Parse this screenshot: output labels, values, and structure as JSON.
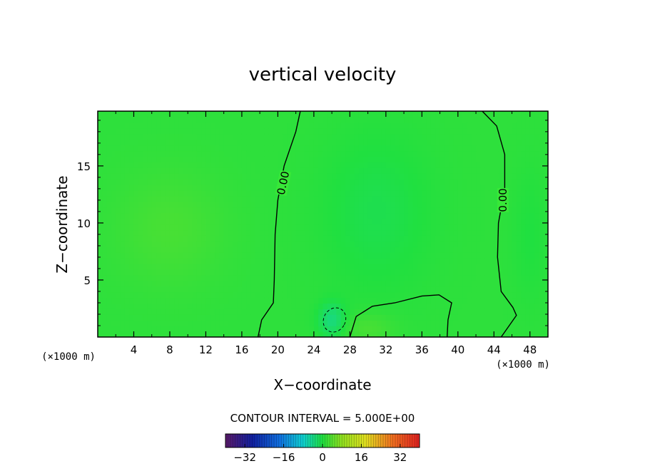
{
  "chart_data": {
    "type": "heatmap",
    "title": "vertical velocity",
    "xlabel": "X−coordinate",
    "ylabel": "Z−coordinate",
    "x_unit": "(×1000 m)",
    "y_unit": "(×1000 m)",
    "xlim": [
      0,
      50
    ],
    "ylim": [
      0,
      19.8
    ],
    "x_ticks": [
      4,
      8,
      12,
      16,
      20,
      24,
      28,
      32,
      36,
      40,
      44,
      48
    ],
    "x_tick_labels": [
      "4",
      "8",
      "12",
      "16",
      "20",
      "24",
      "28",
      "32",
      "36",
      "40",
      "44",
      "48"
    ],
    "y_ticks": [
      5,
      10,
      15
    ],
    "y_tick_labels": [
      "5",
      "10",
      "15"
    ],
    "contour_interval_text": "CONTOUR INTERVAL = 5.000E+00",
    "contour_label": "0.00",
    "colorbar": {
      "min": -40,
      "max": 40,
      "ticks": [
        -32,
        -16,
        0,
        16,
        32
      ],
      "tick_labels": [
        "−32",
        "−16",
        "0",
        "16",
        "32"
      ]
    },
    "zero_contours": [
      [
        [
          17.8,
          0
        ],
        [
          18.2,
          1.5
        ],
        [
          19.5,
          3
        ],
        [
          19.6,
          5
        ],
        [
          19.7,
          9
        ],
        [
          20.0,
          12
        ],
        [
          20.7,
          15
        ],
        [
          22.0,
          18
        ],
        [
          22.5,
          19.8
        ]
      ],
      [
        [
          28.0,
          0
        ],
        [
          28.7,
          1.8
        ],
        [
          30.5,
          2.7
        ],
        [
          33.0,
          3.0
        ],
        [
          36.0,
          3.6
        ],
        [
          37.9,
          3.7
        ],
        [
          39.3,
          3.0
        ],
        [
          38.9,
          1.5
        ],
        [
          38.8,
          0
        ]
      ],
      [
        [
          42.7,
          19.8
        ],
        [
          44.3,
          18.5
        ],
        [
          45.2,
          16
        ],
        [
          45.2,
          13
        ],
        [
          44.5,
          10
        ],
        [
          44.4,
          7
        ],
        [
          44.8,
          4
        ],
        [
          46.1,
          2.6
        ],
        [
          46.5,
          1.9
        ],
        [
          44.8,
          0
        ]
      ]
    ],
    "negative_contour": {
      "center": [
        26.3,
        1.5
      ],
      "half_width": 1.2,
      "half_height": 1.1,
      "rotation_deg": 30
    },
    "field_features": [
      {
        "x": 8,
        "z": 9.5,
        "value": 1.8,
        "sx": 6,
        "sz": 5
      },
      {
        "x": 31,
        "z": 11,
        "value": -1.8,
        "sx": 6,
        "sz": 7
      },
      {
        "x": 26,
        "z": 1.5,
        "value": -4.5,
        "sx": 1.5,
        "sz": 1.5
      },
      {
        "x": 30,
        "z": 0.8,
        "value": 2.0,
        "sx": 3,
        "sz": 1.3
      },
      {
        "x": 48,
        "z": 9,
        "value": -1.0,
        "sx": 2,
        "sz": 6
      }
    ]
  }
}
